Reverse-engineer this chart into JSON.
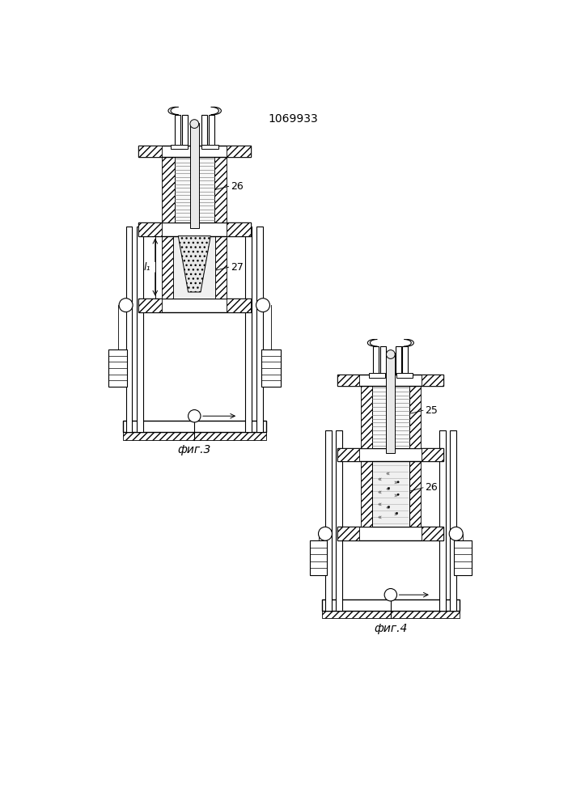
{
  "title": "1069933",
  "fig3_label": "фиг.3",
  "fig4_label": "фиг.4",
  "label_26_fig3": "26",
  "label_27_fig3": "27",
  "label_l1_fig3": "l₁",
  "label_25_fig4": "25",
  "label_26_fig4": "26",
  "bg_color": "#ffffff"
}
